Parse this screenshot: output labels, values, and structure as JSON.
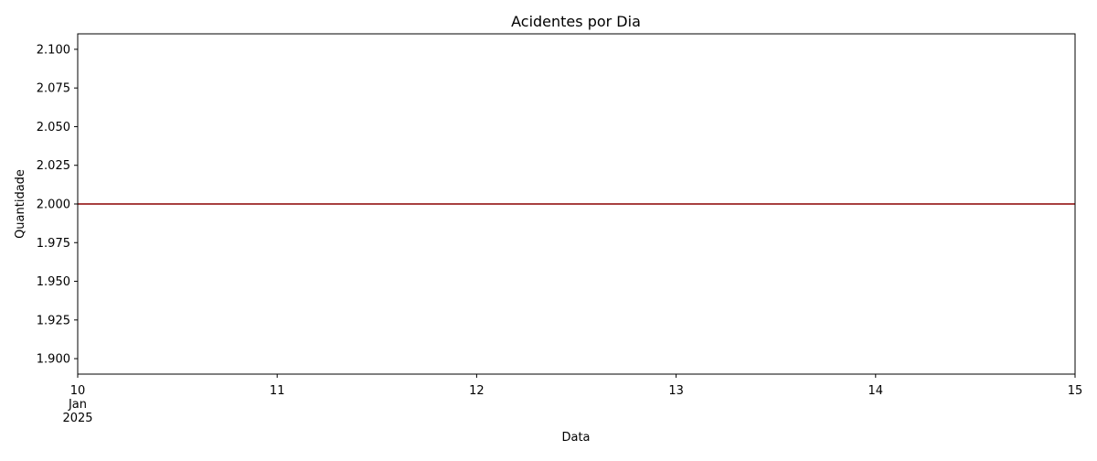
{
  "chart_data": {
    "type": "line",
    "title": "Acidentes por Dia",
    "xlabel": "Data",
    "ylabel": "Quantidade",
    "x_ticks": [
      {
        "value": "2025-01-10",
        "label": [
          "10",
          "Jan",
          "2025"
        ]
      },
      {
        "value": "2025-01-11",
        "label": [
          "11"
        ]
      },
      {
        "value": "2025-01-12",
        "label": [
          "12"
        ]
      },
      {
        "value": "2025-01-13",
        "label": [
          "13"
        ]
      },
      {
        "value": "2025-01-14",
        "label": [
          "14"
        ]
      },
      {
        "value": "2025-01-15",
        "label": [
          "15"
        ]
      }
    ],
    "y_ticks": [
      "1.900",
      "1.925",
      "1.950",
      "1.975",
      "2.000",
      "2.025",
      "2.050",
      "2.075",
      "2.100"
    ],
    "xlim": [
      "2025-01-10",
      "2025-01-15"
    ],
    "ylim": [
      1.89,
      2.11
    ],
    "grid": false,
    "series": [
      {
        "color": "#8b0000",
        "x": [
          "2025-01-10",
          "2025-01-11",
          "2025-01-12",
          "2025-01-13",
          "2025-01-14",
          "2025-01-15"
        ],
        "y": [
          2,
          2,
          2,
          2,
          2,
          2
        ]
      }
    ]
  }
}
